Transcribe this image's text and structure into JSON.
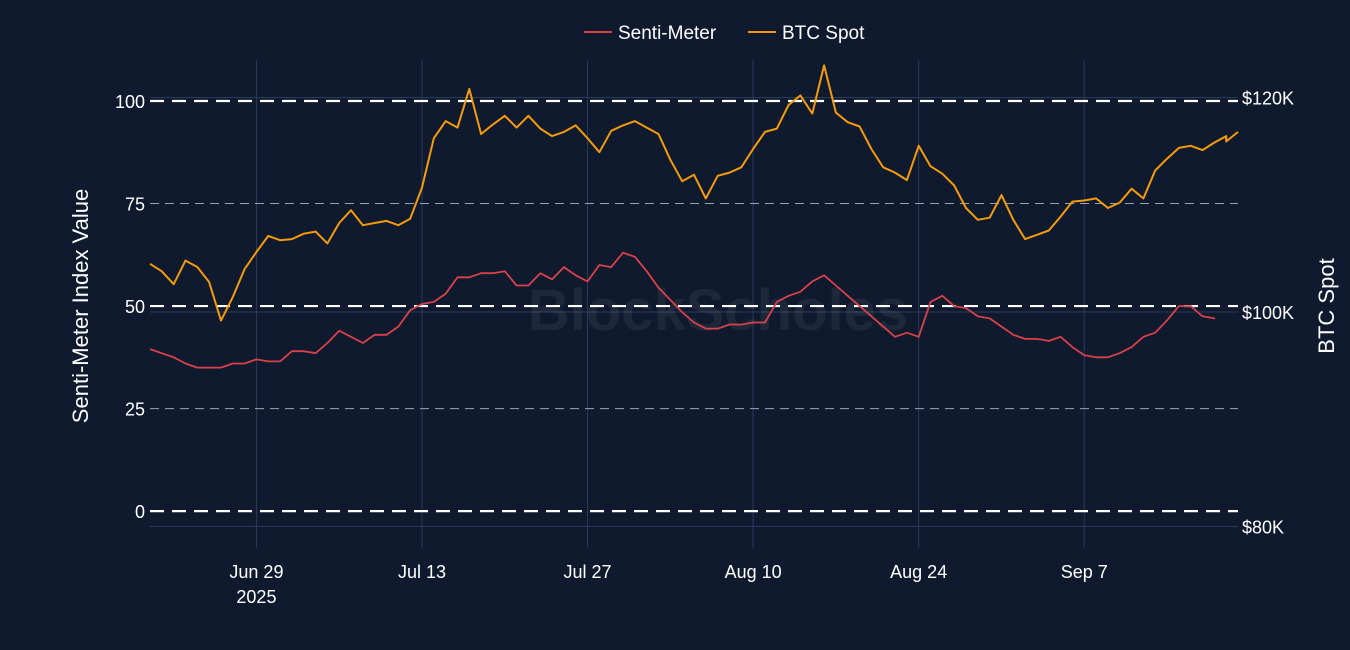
{
  "chart_data": {
    "type": "line",
    "watermark": "BlockScholes",
    "legend_position": "top-center",
    "grid": true,
    "x": {
      "type": "date",
      "range": [
        "2025-06-20",
        "2025-09-20"
      ],
      "tick_labels": [
        {
          "date": "2025-06-29",
          "label": "Jun 29",
          "sublabel": "2025"
        },
        {
          "date": "2025-07-13",
          "label": "Jul 13",
          "sublabel": ""
        },
        {
          "date": "2025-07-27",
          "label": "Jul 27",
          "sublabel": ""
        },
        {
          "date": "2025-08-10",
          "label": "Aug 10",
          "sublabel": ""
        },
        {
          "date": "2025-08-24",
          "label": "Aug 24",
          "sublabel": ""
        },
        {
          "date": "2025-09-07",
          "label": "Sep 7",
          "sublabel": ""
        }
      ]
    },
    "y_left": {
      "label": "Senti-Meter Index Value",
      "range": [
        -9,
        110
      ],
      "ticks": [
        0,
        25,
        50,
        75,
        100
      ],
      "reference_lines": [
        0,
        50,
        100
      ]
    },
    "y_right": {
      "label": "BTC Spot",
      "range": [
        78000,
        123500
      ],
      "ticks": [
        {
          "value": 80000,
          "label": "$80K"
        },
        {
          "value": 100000,
          "label": "$100K"
        },
        {
          "value": 120000,
          "label": "$120K"
        }
      ]
    },
    "series": [
      {
        "name": "Senti-Meter",
        "color": "#d8414a",
        "axis": "left",
        "points": [
          [
            "2025-06-20",
            39.5
          ],
          [
            "2025-06-22",
            37.5
          ],
          [
            "2025-06-23",
            36
          ],
          [
            "2025-06-24",
            35
          ],
          [
            "2025-06-26",
            35
          ],
          [
            "2025-06-27",
            36
          ],
          [
            "2025-06-28",
            36
          ],
          [
            "2025-06-29",
            37
          ],
          [
            "2025-06-30",
            36.5
          ],
          [
            "2025-07-01",
            36.5
          ],
          [
            "2025-07-02",
            39
          ],
          [
            "2025-07-03",
            39
          ],
          [
            "2025-07-04",
            38.5
          ],
          [
            "2025-07-05",
            41
          ],
          [
            "2025-07-06",
            44
          ],
          [
            "2025-07-07",
            42.5
          ],
          [
            "2025-07-08",
            41
          ],
          [
            "2025-07-09",
            43
          ],
          [
            "2025-07-10",
            43
          ],
          [
            "2025-07-11",
            45
          ],
          [
            "2025-07-12",
            49
          ],
          [
            "2025-07-13",
            50.5
          ],
          [
            "2025-07-14",
            51
          ],
          [
            "2025-07-15",
            53
          ],
          [
            "2025-07-16",
            57
          ],
          [
            "2025-07-17",
            57
          ],
          [
            "2025-07-18",
            58
          ],
          [
            "2025-07-19",
            58
          ],
          [
            "2025-07-20",
            58.5
          ],
          [
            "2025-07-21",
            55
          ],
          [
            "2025-07-22",
            55
          ],
          [
            "2025-07-23",
            58
          ],
          [
            "2025-07-24",
            56.5
          ],
          [
            "2025-07-25",
            59.5
          ],
          [
            "2025-07-26",
            57.5
          ],
          [
            "2025-07-27",
            56
          ],
          [
            "2025-07-28",
            60
          ],
          [
            "2025-07-29",
            59.5
          ],
          [
            "2025-07-30",
            63
          ],
          [
            "2025-07-31",
            62
          ],
          [
            "2025-08-01",
            58.5
          ],
          [
            "2025-08-02",
            54.5
          ],
          [
            "2025-08-03",
            51.5
          ],
          [
            "2025-08-04",
            48.5
          ],
          [
            "2025-08-05",
            46
          ],
          [
            "2025-08-06",
            44.5
          ],
          [
            "2025-08-07",
            44.5
          ],
          [
            "2025-08-08",
            45.5
          ],
          [
            "2025-08-09",
            45.5
          ],
          [
            "2025-08-10",
            46
          ],
          [
            "2025-08-11",
            46
          ],
          [
            "2025-08-12",
            51
          ],
          [
            "2025-08-13",
            52.5
          ],
          [
            "2025-08-14",
            53.5
          ],
          [
            "2025-08-15",
            56
          ],
          [
            "2025-08-16",
            57.5
          ],
          [
            "2025-08-17",
            55
          ],
          [
            "2025-08-18",
            52.5
          ],
          [
            "2025-08-19",
            50
          ],
          [
            "2025-08-20",
            47.5
          ],
          [
            "2025-08-21",
            45
          ],
          [
            "2025-08-22",
            42.5
          ],
          [
            "2025-08-23",
            43.5
          ],
          [
            "2025-08-24",
            42.5
          ],
          [
            "2025-08-25",
            51
          ],
          [
            "2025-08-26",
            52.5
          ],
          [
            "2025-08-27",
            50
          ],
          [
            "2025-08-28",
            49.5
          ],
          [
            "2025-08-29",
            47.5
          ],
          [
            "2025-08-30",
            47
          ],
          [
            "2025-08-31",
            45
          ],
          [
            "2025-09-01",
            43
          ],
          [
            "2025-09-02",
            42
          ],
          [
            "2025-09-03",
            42
          ],
          [
            "2025-09-04",
            41.5
          ],
          [
            "2025-09-05",
            42.5
          ],
          [
            "2025-09-06",
            40
          ],
          [
            "2025-09-07",
            38
          ],
          [
            "2025-09-08",
            37.5
          ],
          [
            "2025-09-09",
            37.5
          ],
          [
            "2025-09-10",
            38.5
          ],
          [
            "2025-09-11",
            40
          ],
          [
            "2025-09-12",
            42.5
          ],
          [
            "2025-09-13",
            43.5
          ],
          [
            "2025-09-14",
            46.5
          ],
          [
            "2025-09-15",
            50
          ],
          [
            "2025-09-16",
            50
          ],
          [
            "2025-09-17",
            47.5
          ],
          [
            "2025-09-18",
            47
          ],
          [
            "2025-09-18",
            46.8
          ]
        ]
      },
      {
        "name": "BTC Spot",
        "color": "#f59b0b",
        "axis": "right",
        "points": [
          [
            "2025-06-20",
            104500
          ],
          [
            "2025-06-21",
            103800
          ],
          [
            "2025-06-22",
            102600
          ],
          [
            "2025-06-23",
            104800
          ],
          [
            "2025-06-24",
            104200
          ],
          [
            "2025-06-25",
            102800
          ],
          [
            "2025-06-26",
            99200
          ],
          [
            "2025-06-27",
            101400
          ],
          [
            "2025-06-28",
            104000
          ],
          [
            "2025-06-29",
            105600
          ],
          [
            "2025-06-30",
            107100
          ],
          [
            "2025-07-01",
            106700
          ],
          [
            "2025-07-02",
            106800
          ],
          [
            "2025-07-03",
            107300
          ],
          [
            "2025-07-04",
            107500
          ],
          [
            "2025-07-05",
            106400
          ],
          [
            "2025-07-06",
            108300
          ],
          [
            "2025-07-07",
            109500
          ],
          [
            "2025-07-08",
            108100
          ],
          [
            "2025-07-09",
            108300
          ],
          [
            "2025-07-10",
            108500
          ],
          [
            "2025-07-11",
            108100
          ],
          [
            "2025-07-12",
            108700
          ],
          [
            "2025-07-13",
            111600
          ],
          [
            "2025-07-14",
            116200
          ],
          [
            "2025-07-15",
            117800
          ],
          [
            "2025-07-16",
            117200
          ],
          [
            "2025-07-17",
            120800
          ],
          [
            "2025-07-18",
            116600
          ],
          [
            "2025-07-19",
            117500
          ],
          [
            "2025-07-20",
            118300
          ],
          [
            "2025-07-21",
            117200
          ],
          [
            "2025-07-22",
            118300
          ],
          [
            "2025-07-23",
            117100
          ],
          [
            "2025-07-24",
            116400
          ],
          [
            "2025-07-25",
            116800
          ],
          [
            "2025-07-26",
            117400
          ],
          [
            "2025-07-27",
            116200
          ],
          [
            "2025-07-28",
            114900
          ],
          [
            "2025-07-29",
            116900
          ],
          [
            "2025-07-30",
            117400
          ],
          [
            "2025-07-31",
            117800
          ],
          [
            "2025-08-01",
            117200
          ],
          [
            "2025-08-02",
            116600
          ],
          [
            "2025-08-03",
            114200
          ],
          [
            "2025-08-04",
            112200
          ],
          [
            "2025-08-05",
            112800
          ],
          [
            "2025-08-06",
            110600
          ],
          [
            "2025-08-07",
            112700
          ],
          [
            "2025-08-08",
            113000
          ],
          [
            "2025-08-09",
            113500
          ],
          [
            "2025-08-10",
            115200
          ],
          [
            "2025-08-11",
            116800
          ],
          [
            "2025-08-12",
            117100
          ],
          [
            "2025-08-13",
            119300
          ],
          [
            "2025-08-14",
            120200
          ],
          [
            "2025-08-15",
            118500
          ],
          [
            "2025-08-16",
            123000
          ],
          [
            "2025-08-17",
            118600
          ],
          [
            "2025-08-18",
            117700
          ],
          [
            "2025-08-19",
            117300
          ],
          [
            "2025-08-20",
            115200
          ],
          [
            "2025-08-21",
            113500
          ],
          [
            "2025-08-22",
            113000
          ],
          [
            "2025-08-23",
            112300
          ],
          [
            "2025-08-24",
            115500
          ],
          [
            "2025-08-25",
            113600
          ],
          [
            "2025-08-26",
            112900
          ],
          [
            "2025-08-27",
            111800
          ],
          [
            "2025-08-28",
            109700
          ],
          [
            "2025-08-29",
            108600
          ],
          [
            "2025-08-30",
            108800
          ],
          [
            "2025-08-31",
            110900
          ],
          [
            "2025-09-01",
            108600
          ],
          [
            "2025-09-02",
            106800
          ],
          [
            "2025-09-03",
            107200
          ],
          [
            "2025-09-04",
            107600
          ],
          [
            "2025-09-05",
            108900
          ],
          [
            "2025-09-06",
            110300
          ],
          [
            "2025-09-07",
            110400
          ],
          [
            "2025-09-08",
            110600
          ],
          [
            "2025-09-09",
            109700
          ],
          [
            "2025-09-10",
            110200
          ],
          [
            "2025-09-11",
            111500
          ],
          [
            "2025-09-12",
            110600
          ],
          [
            "2025-09-13",
            113200
          ],
          [
            "2025-09-14",
            114300
          ],
          [
            "2025-09-15",
            115300
          ],
          [
            "2025-09-16",
            115500
          ],
          [
            "2025-09-17",
            115100
          ],
          [
            "2025-09-18",
            115800
          ],
          [
            "2025-09-19",
            116400
          ],
          [
            "2025-09-19",
            115900
          ],
          [
            "2025-09-20",
            116800
          ]
        ]
      }
    ]
  }
}
